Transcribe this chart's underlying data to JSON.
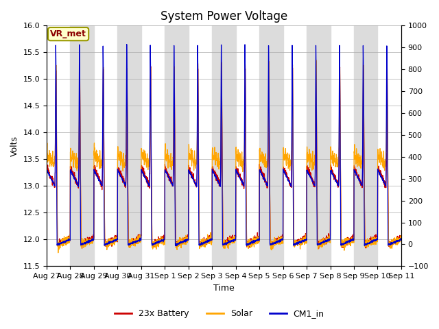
{
  "title": "System Power Voltage",
  "xlabel": "Time",
  "ylabel_left": "Volts",
  "ylim_left": [
    11.5,
    16.0
  ],
  "ylim_right": [
    -100,
    1000
  ],
  "yticks_left": [
    11.5,
    12.0,
    12.5,
    13.0,
    13.5,
    14.0,
    14.5,
    15.0,
    15.5,
    16.0
  ],
  "yticks_right": [
    -100,
    0,
    100,
    200,
    300,
    400,
    500,
    600,
    700,
    800,
    900,
    1000
  ],
  "xtick_labels": [
    "Aug 27",
    "Aug 28",
    "Aug 29",
    "Aug 30",
    "Aug 31",
    "Sep 1",
    "Sep 2",
    "Sep 3",
    "Sep 4",
    "Sep 5",
    "Sep 6",
    "Sep 7",
    "Sep 8",
    "Sep 9",
    "Sep 10",
    "Sep 11"
  ],
  "n_days": 15,
  "colors": {
    "battery": "#CC0000",
    "solar": "#FFA500",
    "cm1": "#0000CC"
  },
  "legend_labels": [
    "23x Battery",
    "Solar",
    "CM1_in"
  ],
  "annotation_text": "VR_met",
  "annotation_color": "#8B0000",
  "bg_band_color": "#DCDCDC",
  "grid_color": "#AAAAAA",
  "title_fontsize": 12,
  "axis_fontsize": 9,
  "tick_fontsize": 8
}
